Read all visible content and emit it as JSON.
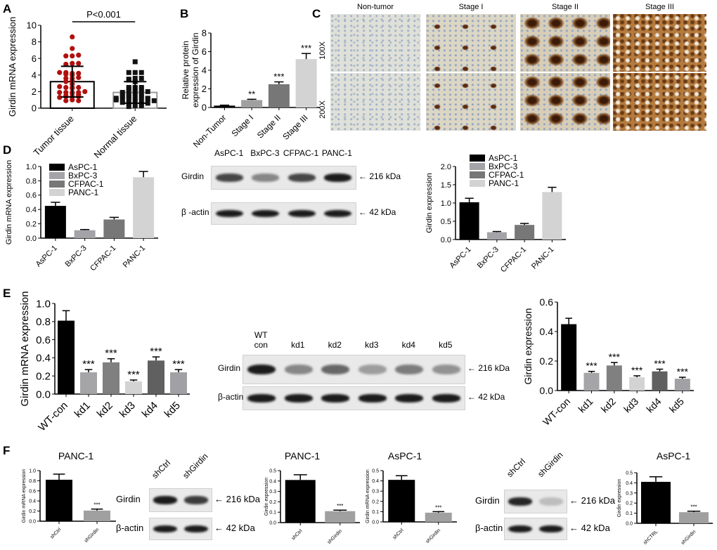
{
  "panel_letters": [
    "A",
    "B",
    "C",
    "D",
    "E",
    "F"
  ],
  "panel_c": {
    "columns": [
      "Non-tumor",
      "Stage I",
      "Stage II",
      "Stage III"
    ],
    "rows": [
      "100X",
      "200X"
    ]
  },
  "blot_d": {
    "lanes": [
      "AsPC-1",
      "BxPC-3",
      "CFPAC-1",
      "PANC-1"
    ],
    "rows": [
      "Girdin",
      "β -actin"
    ],
    "markers": [
      "← 216 kDa",
      "← 42 kDa"
    ],
    "girdin_intensity": [
      0.75,
      0.45,
      0.75,
      0.95
    ],
    "actin_intensity": [
      0.95,
      0.95,
      0.95,
      0.95
    ]
  },
  "blot_e": {
    "lanes": [
      "WT con",
      "kd1",
      "kd2",
      "kd3",
      "kd4",
      "kd5"
    ],
    "rows": [
      "Girdin",
      "β-actin"
    ],
    "markers": [
      "← 216 kDa",
      "← 42 kDa"
    ],
    "girdin_intensity": [
      0.95,
      0.45,
      0.6,
      0.35,
      0.5,
      0.4
    ],
    "actin_intensity": [
      0.95,
      0.95,
      0.95,
      0.95,
      0.95,
      0.95
    ]
  },
  "blot_f1": {
    "lanes": [
      "shCtrl",
      "shGirdin"
    ],
    "rows": [
      "Girdin",
      "β-actin"
    ],
    "markers": [
      "← 216 kDa",
      "← 42 kDa"
    ],
    "girdin_intensity": [
      0.95,
      0.8
    ],
    "actin_intensity": [
      0.95,
      0.95
    ]
  },
  "blot_f2": {
    "lanes": [
      "shCtrl",
      "shGirdin"
    ],
    "rows": [
      "Girdin",
      "β-actin"
    ],
    "markers": [
      "← 216 kDa",
      "← 42 kDa"
    ],
    "girdin_intensity": [
      0.9,
      0.2
    ],
    "actin_intensity": [
      0.95,
      0.95
    ]
  },
  "colors": {
    "tumor_dot": "#b01010",
    "black": "#000000",
    "gray_light": "#d3d3d3",
    "gray_mid": "#a3a3a8",
    "gray_dark": "#777777"
  },
  "chart_data": [
    {
      "type": "bar",
      "panel": "A",
      "ylabel": "Girdin mRNA expression",
      "categories": [
        "Tumor tissue",
        "Normal tissue"
      ],
      "values": [
        3.2,
        1.9
      ],
      "error": [
        1.85,
        1.3
      ],
      "ylim": [
        0,
        10
      ],
      "ytick_step": 2,
      "annotation": "P<0.001",
      "points": [
        [
          8.6,
          7.2,
          6.3,
          6.3,
          6.4,
          5.4,
          5.3,
          5.4,
          4.2,
          4.0,
          4.3,
          4.2,
          4.1,
          4.3,
          3.6,
          3.3,
          3.2,
          3.6,
          2.9,
          2.5,
          2.5,
          2.4,
          2.5,
          2.6,
          1.9,
          1.9,
          1.9,
          1.8,
          1.9,
          1.4,
          1.4,
          1.4,
          1.5,
          1.3,
          1.0,
          0.9,
          0.9,
          3.7,
          2.0,
          1.6
        ],
        [
          5.6,
          4.3,
          4.3,
          4.3,
          3.6,
          3.5,
          3.6,
          3.2,
          3.4,
          2.5,
          2.4,
          2.5,
          2.4,
          2.5,
          2.3,
          2.0,
          2.0,
          1.9,
          1.9,
          1.8,
          2.0,
          1.5,
          1.4,
          1.4,
          1.5,
          1.3,
          1.4,
          1.5,
          1.1,
          1.0,
          0.9,
          1.0,
          0.8,
          1.1,
          1.0,
          0.9,
          0.6,
          0.5,
          0.7,
          0.6,
          0.3,
          0.2,
          0.3,
          1.2,
          1.2
        ]
      ],
      "colors": [
        "#ffffff",
        "#ffffff"
      ]
    },
    {
      "type": "bar",
      "panel": "B",
      "ylabel": "Relative protein expression of Girdin",
      "categories": [
        "Non-Tumor",
        "Stage I",
        "Stage II",
        "Stage III"
      ],
      "values": [
        0.2,
        0.8,
        2.5,
        5.2
      ],
      "error": [
        0.05,
        0.08,
        0.25,
        0.6
      ],
      "significance": [
        "",
        "**",
        "***",
        "***"
      ],
      "ylim": [
        0,
        8
      ],
      "ytick_step": 2,
      "colors": [
        "#000000",
        "#a0a0a0",
        "#777777",
        "#d3d3d3"
      ]
    },
    {
      "type": "bar",
      "panel": "D-left",
      "ylabel": "Girdin mRNA expression",
      "categories": [
        "AsPC-1",
        "BxPC-3",
        "CFPAC-1",
        "PANC-1"
      ],
      "values": [
        0.45,
        0.11,
        0.26,
        0.85
      ],
      "error": [
        0.05,
        0.01,
        0.03,
        0.08
      ],
      "legend": [
        "AsPC-1",
        "BxPC-3",
        "CFPAC-1",
        "PANC-1"
      ],
      "legend_position": "top-left",
      "ylim": [
        0,
        1.0
      ],
      "ytick_step": 0.2,
      "colors": [
        "#000000",
        "#a3a3a8",
        "#777777",
        "#d3d3d3"
      ]
    },
    {
      "type": "bar",
      "panel": "D-right",
      "ylabel": "Girdin expression",
      "categories": [
        "AsPC-1",
        "BxPC-3",
        "CFPAC-1",
        "PANC-1"
      ],
      "values": [
        1.02,
        0.2,
        0.4,
        1.3
      ],
      "error": [
        0.11,
        0.02,
        0.04,
        0.13
      ],
      "legend": [
        "AsPC-1",
        "BxPC-3",
        "CFPAC-1",
        "PANC-1"
      ],
      "legend_position": "top-left",
      "ylim": [
        0,
        2.0
      ],
      "ytick_step": 0.5,
      "colors": [
        "#000000",
        "#a3a3a8",
        "#777777",
        "#d3d3d3"
      ]
    },
    {
      "type": "bar",
      "panel": "E-left",
      "ylabel": "Girdin mRNA expression",
      "categories": [
        "WT-con",
        "kd1",
        "kd2",
        "kd3",
        "kd4",
        "kd5"
      ],
      "values": [
        0.81,
        0.24,
        0.35,
        0.14,
        0.37,
        0.24
      ],
      "error": [
        0.11,
        0.03,
        0.04,
        0.015,
        0.04,
        0.03
      ],
      "significance": [
        "",
        "***",
        "***",
        "***",
        "***",
        "***"
      ],
      "ylim": [
        0,
        1.0
      ],
      "ytick_step": 0.2,
      "colors": [
        "#000000",
        "#a5a5a8",
        "#808080",
        "#d3d3d3",
        "#606060",
        "#a0a0a5"
      ]
    },
    {
      "type": "bar",
      "panel": "E-right",
      "ylabel": "Girdin expression",
      "categories": [
        "WT-con",
        "kd1",
        "kd2",
        "kd3",
        "kd4",
        "kd5"
      ],
      "values": [
        0.45,
        0.12,
        0.17,
        0.09,
        0.13,
        0.08
      ],
      "error": [
        0.04,
        0.01,
        0.02,
        0.01,
        0.015,
        0.01
      ],
      "significance": [
        "",
        "***",
        "***",
        "***",
        "***",
        "***"
      ],
      "ylim": [
        0,
        0.6
      ],
      "ytick_step": 0.2,
      "colors": [
        "#000000",
        "#a5a5a8",
        "#808080",
        "#d3d3d3",
        "#606060",
        "#a0a0a5"
      ]
    },
    {
      "type": "bar",
      "panel": "F-1",
      "title": "PANC-1",
      "ylabel": "Girdin mRNA expression",
      "categories": [
        "shCtrl",
        "shGirdin"
      ],
      "values": [
        0.82,
        0.21
      ],
      "error": [
        0.11,
        0.03
      ],
      "significance": [
        "",
        "***"
      ],
      "ylim": [
        0,
        1.0
      ],
      "ytick_step": 0.2,
      "colors": [
        "#000000",
        "#a0a0a0"
      ]
    },
    {
      "type": "bar",
      "panel": "F-2",
      "title": "PANC-1",
      "ylabel": "Girdin expression",
      "categories": [
        "shCtrl",
        "shGirdin"
      ],
      "values": [
        0.41,
        0.11
      ],
      "error": [
        0.05,
        0.01
      ],
      "significance": [
        "",
        "***"
      ],
      "ylim": [
        0,
        0.5
      ],
      "ytick_step": 0.1,
      "colors": [
        "#000000",
        "#a0a0a0"
      ]
    },
    {
      "type": "bar",
      "panel": "F-3",
      "title": "AsPC-1",
      "ylabel": "Girdin mRNA expression",
      "categories": [
        "shCtrl",
        "shGirdin"
      ],
      "values": [
        0.41,
        0.09
      ],
      "error": [
        0.04,
        0.01
      ],
      "significance": [
        "",
        "***"
      ],
      "ylim": [
        0,
        0.5
      ],
      "ytick_step": 0.1,
      "colors": [
        "#000000",
        "#a0a0a0"
      ]
    },
    {
      "type": "bar",
      "panel": "F-4",
      "title": "AsPC-1",
      "ylabel": "Girdin expression",
      "categories": [
        "shCTRL",
        "shGirdin"
      ],
      "values": [
        0.41,
        0.11
      ],
      "error": [
        0.05,
        0.01
      ],
      "significance": [
        "",
        "***"
      ],
      "ylim": [
        0,
        0.5
      ],
      "ytick_step": 0.1,
      "colors": [
        "#000000",
        "#a0a0a0"
      ]
    }
  ]
}
